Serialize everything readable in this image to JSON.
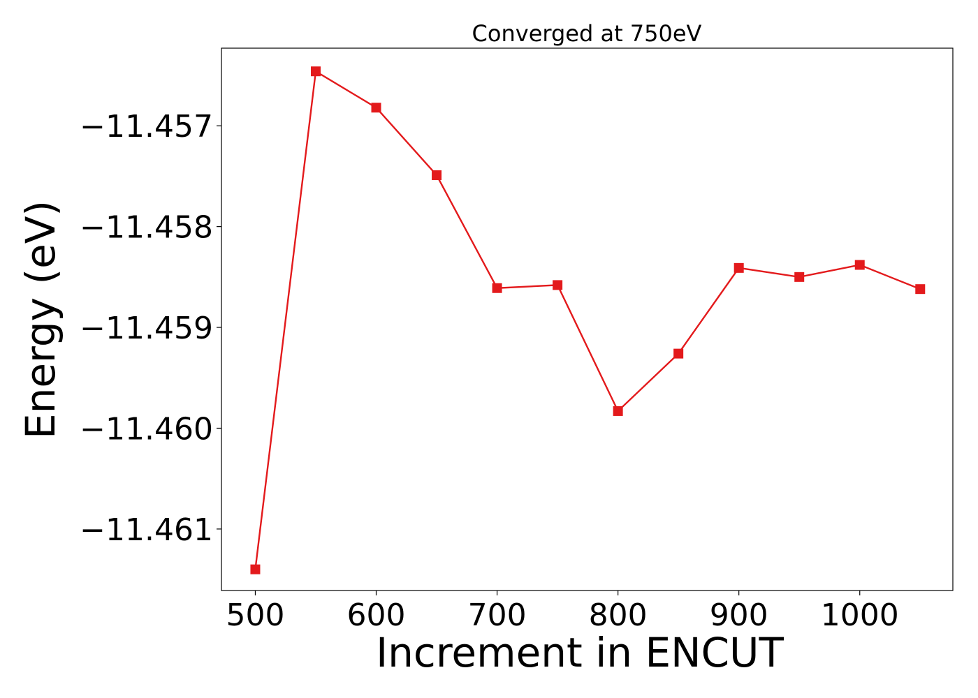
{
  "chart_data": {
    "type": "line",
    "title": "Converged at 750eV",
    "xlabel": "Increment in ENCUT",
    "ylabel": "Energy (eV)",
    "xlim": [
      472,
      1077
    ],
    "ylim": [
      -11.46161,
      -11.45623
    ],
    "x_ticks": [
      500,
      600,
      700,
      800,
      900,
      1000
    ],
    "x_tick_labels": [
      "500",
      "600",
      "700",
      "800",
      "900",
      "1000"
    ],
    "y_ticks": [
      -11.457,
      -11.458,
      -11.459,
      -11.46,
      -11.461
    ],
    "y_tick_labels": [
      "−11.457",
      "−11.458",
      "−11.459",
      "−11.460",
      "−11.461"
    ],
    "grid": false,
    "series": [
      {
        "color": "#e31a1c",
        "marker": "square",
        "x": [
          500,
          550,
          600,
          650,
          700,
          750,
          800,
          850,
          900,
          950,
          1000,
          1050
        ],
        "y": [
          -11.4614,
          -11.45646,
          -11.45682,
          -11.45749,
          -11.45861,
          -11.45858,
          -11.45983,
          -11.45926,
          -11.45841,
          -11.4585,
          -11.45838,
          -11.45862
        ]
      }
    ]
  }
}
